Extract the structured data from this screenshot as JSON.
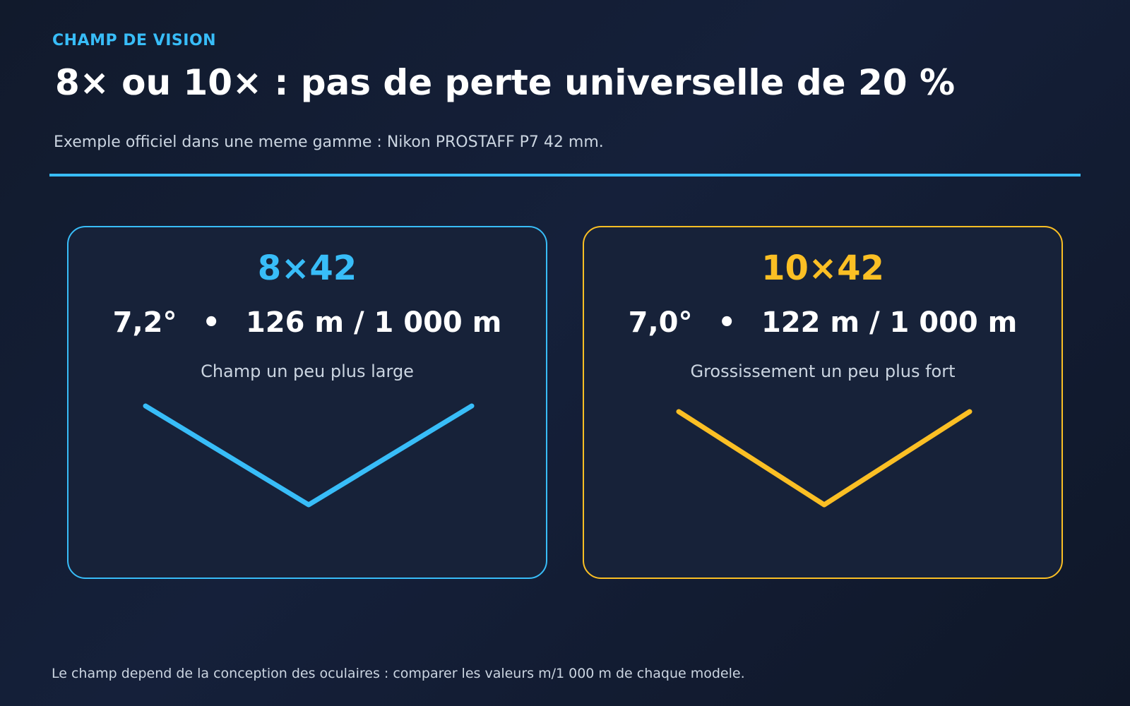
{
  "header": {
    "eyebrow": "CHAMP DE VISION",
    "title": "8× ou 10× : pas de perte universelle de 20 %",
    "subtitle": "Exemple officiel dans une meme gamme : Nikon PROSTAFF P7 42 mm."
  },
  "colors": {
    "accent_blue": "#38bdf8",
    "accent_yellow": "#fbbf24",
    "card_background": "#172239",
    "page_background": "#111a2c"
  },
  "cards": [
    {
      "model": "8×42",
      "angle": "7,2°",
      "separator": "•",
      "field": "126 m / 1 000 m",
      "note": "Champ un peu plus large",
      "color": "#38bdf8",
      "field_angle_deg": 7.2
    },
    {
      "model": "10×42",
      "angle": "7,0°",
      "separator": "•",
      "field": "122 m / 1 000 m",
      "note": "Grossissement un peu plus fort",
      "color": "#fbbf24",
      "field_angle_deg": 7.0
    }
  ],
  "footer": {
    "note": "Le champ depend de la conception des oculaires : comparer les valeurs m/1 000 m de chaque modele."
  }
}
